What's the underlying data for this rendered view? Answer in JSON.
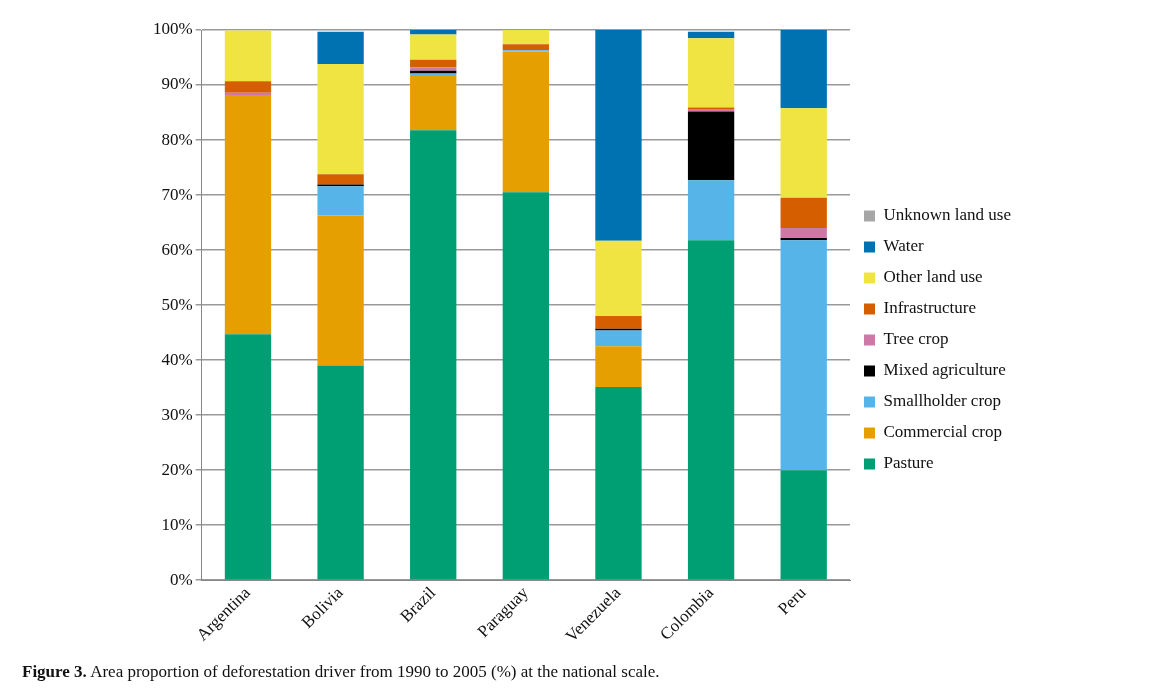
{
  "chart_data": {
    "type": "bar",
    "stacked": true,
    "categories": [
      "Argentina",
      "Bolivia",
      "Brazil",
      "Paraguay",
      "Venezuela",
      "Colombia",
      "Peru"
    ],
    "series": [
      {
        "name": "Pasture",
        "color": "#009e73",
        "values": [
          44.7,
          39.0,
          81.8,
          70.5,
          35.1,
          61.8,
          20.0
        ]
      },
      {
        "name": "Commercial crop",
        "color": "#e69f00",
        "values": [
          43.5,
          27.3,
          10.0,
          25.6,
          7.4,
          0,
          0
        ]
      },
      {
        "name": "Smallholder crop",
        "color": "#56b4e9",
        "values": [
          0,
          5.3,
          0.3,
          0.2,
          2.9,
          10.9,
          41.8
        ]
      },
      {
        "name": "Mixed agriculture",
        "color": "#000000",
        "values": [
          0,
          0.3,
          0.5,
          0,
          0.3,
          12.5,
          0.4
        ]
      },
      {
        "name": "Tree crop",
        "color": "#cc79a7",
        "values": [
          0.4,
          0,
          0.6,
          0,
          0,
          0.3,
          1.8
        ]
      },
      {
        "name": "Infrastructure",
        "color": "#d55e00",
        "values": [
          2.1,
          1.9,
          1.4,
          1.1,
          2.3,
          0.4,
          5.5
        ]
      },
      {
        "name": "Other land use",
        "color": "#f0e442",
        "values": [
          9.2,
          20.0,
          4.6,
          2.6,
          13.7,
          12.6,
          16.3
        ]
      },
      {
        "name": "Water",
        "color": "#0072b2",
        "values": [
          null,
          5.9,
          0.8,
          0,
          38.3,
          1.2,
          14.2
        ]
      },
      {
        "name": "Unknown land use",
        "color": "#a6a6a6",
        "values": [
          0,
          null,
          0,
          0,
          0,
          null,
          0
        ]
      }
    ],
    "ylim": [
      0,
      100
    ],
    "yticks": [
      {
        "value": 0,
        "label": "0%"
      },
      {
        "value": 10,
        "label": "10%"
      },
      {
        "value": 20,
        "label": "20%"
      },
      {
        "value": 30,
        "label": "30%"
      },
      {
        "value": 40,
        "label": "40%"
      },
      {
        "value": 50,
        "label": "50%"
      },
      {
        "value": 60,
        "label": "60%"
      },
      {
        "value": 70,
        "label": "70%"
      },
      {
        "value": 80,
        "label": "80%"
      },
      {
        "value": 90,
        "label": "90%"
      },
      {
        "value": 100,
        "label": "100%"
      }
    ],
    "grid": "y",
    "legend": "right",
    "annotations": [
      "Figure 3. Area proportion of deforestation driver from 1990 to 2005 (%) at the national scale."
    ]
  }
}
